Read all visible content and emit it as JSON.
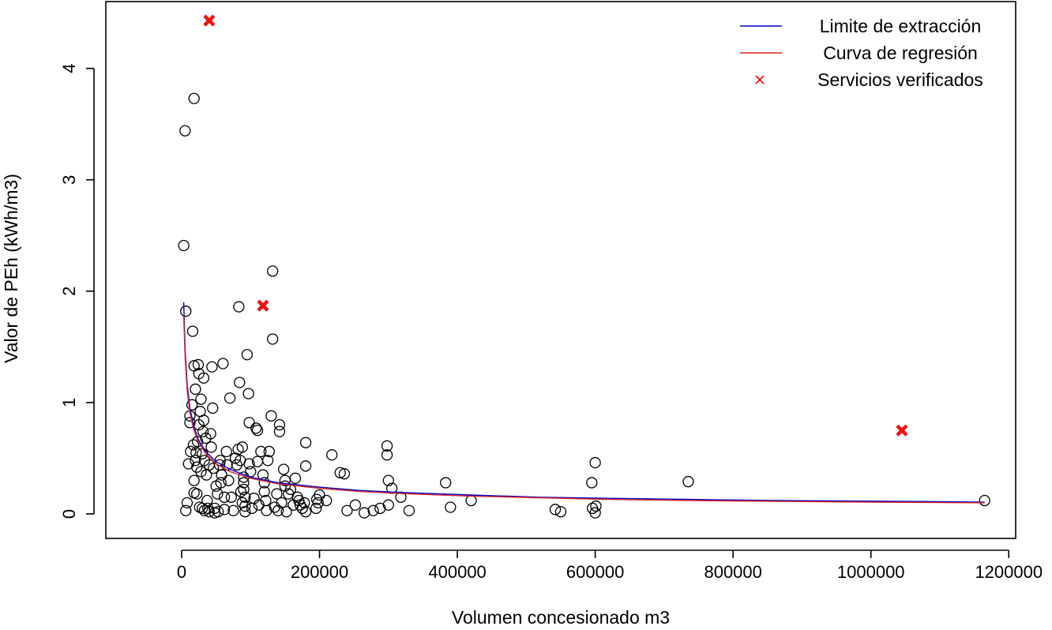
{
  "chart_data": {
    "type": "scatter",
    "xlabel": "Volumen concesionado m3",
    "ylabel": "Valor de PEh (kWh/m3)",
    "xlim": [
      -110000,
      1210000
    ],
    "ylim": [
      -0.22,
      4.6
    ],
    "x_ticks": [
      0,
      200000,
      400000,
      600000,
      800000,
      1000000,
      1200000
    ],
    "x_tick_labels": [
      "0",
      "200000",
      "400000",
      "600000",
      "800000",
      "1000000",
      "1200000"
    ],
    "y_ticks": [
      0,
      1,
      2,
      3,
      4
    ],
    "y_tick_labels": [
      "0",
      "1",
      "2",
      "3",
      "4"
    ],
    "grid": false,
    "legend_position": "top-right",
    "legend": [
      {
        "label": "Limite de extracción",
        "kind": "line",
        "color": "#0000cc"
      },
      {
        "label": "Curva de regresión",
        "kind": "line",
        "color": "#dd2222"
      },
      {
        "label": "Servicios verificados",
        "kind": "cross",
        "color": "#ee1111"
      }
    ],
    "series": [
      {
        "name": "Limite de extracción",
        "kind": "line",
        "color": "#0000cc",
        "x": [
          3000,
          5000,
          8000,
          12000,
          17000,
          24000,
          35000,
          50000,
          70000,
          100000,
          140000,
          200000,
          260000,
          330000,
          420000,
          520000,
          620000,
          740000,
          860000,
          980000,
          1100000,
          1165000
        ],
        "y": [
          1.9,
          1.47,
          1.16,
          0.95,
          0.8,
          0.67,
          0.56,
          0.47,
          0.4,
          0.33,
          0.28,
          0.24,
          0.21,
          0.19,
          0.17,
          0.15,
          0.14,
          0.13,
          0.12,
          0.115,
          0.11,
          0.105
        ]
      },
      {
        "name": "Curva de regresión",
        "kind": "line",
        "color": "#dd2222",
        "x": [
          3000,
          5000,
          8000,
          12000,
          17000,
          24000,
          35000,
          50000,
          70000,
          100000,
          140000,
          200000,
          260000,
          330000,
          420000,
          520000,
          620000,
          740000,
          860000,
          980000,
          1100000,
          1165000
        ],
        "y": [
          1.78,
          1.4,
          1.11,
          0.91,
          0.77,
          0.65,
          0.54,
          0.45,
          0.38,
          0.32,
          0.27,
          0.23,
          0.2,
          0.18,
          0.16,
          0.145,
          0.13,
          0.12,
          0.113,
          0.107,
          0.102,
          0.1
        ]
      },
      {
        "name": "Servicios verificados",
        "kind": "cross",
        "color": "#ee1111",
        "points": [
          [
            40000,
            4.43
          ],
          [
            118000,
            1.87
          ],
          [
            1045000,
            0.75
          ]
        ]
      },
      {
        "name": "",
        "kind": "circles",
        "color": "#000000",
        "points": [
          [
            3000,
            2.41
          ],
          [
            5000,
            3.44
          ],
          [
            6000,
            1.82
          ],
          [
            18000,
            3.73
          ],
          [
            8000,
            0.1
          ],
          [
            6000,
            0.03
          ],
          [
            10000,
            0.45
          ],
          [
            12000,
            0.82
          ],
          [
            12000,
            0.88
          ],
          [
            13000,
            0.56
          ],
          [
            15000,
            0.98
          ],
          [
            16000,
            1.64
          ],
          [
            17000,
            0.62
          ],
          [
            18000,
            0.19
          ],
          [
            18000,
            0.3
          ],
          [
            18000,
            1.33
          ],
          [
            20000,
            0.48
          ],
          [
            20000,
            1.12
          ],
          [
            21000,
            0.55
          ],
          [
            22000,
            0.18
          ],
          [
            22000,
            0.42
          ],
          [
            23000,
            0.65
          ],
          [
            24000,
            1.34
          ],
          [
            25000,
            1.26
          ],
          [
            25000,
            0.8
          ],
          [
            26000,
            0.06
          ],
          [
            27000,
            0.92
          ],
          [
            28000,
            1.03
          ],
          [
            28000,
            0.38
          ],
          [
            30000,
            0.05
          ],
          [
            30000,
            0.54
          ],
          [
            31000,
            0.74
          ],
          [
            32000,
            0.84
          ],
          [
            32000,
            1.22
          ],
          [
            33000,
            0.48
          ],
          [
            33000,
            0.03
          ],
          [
            35000,
            0.68
          ],
          [
            36000,
            0.35
          ],
          [
            37000,
            0.12
          ],
          [
            38000,
            0.05
          ],
          [
            40000,
            0.02
          ],
          [
            40000,
            0.44
          ],
          [
            42000,
            0.72
          ],
          [
            43000,
            0.6
          ],
          [
            44000,
            1.32
          ],
          [
            45000,
            0.95
          ],
          [
            46000,
            0.41
          ],
          [
            48000,
            0.05
          ],
          [
            48000,
            0.01
          ],
          [
            50000,
            0.25
          ],
          [
            52000,
            0.18
          ],
          [
            53000,
            0.02
          ],
          [
            55000,
            0.44
          ],
          [
            56000,
            0.48
          ],
          [
            57000,
            0.28
          ],
          [
            58000,
            0.35
          ],
          [
            60000,
            1.35
          ],
          [
            62000,
            0.15
          ],
          [
            62000,
            0.04
          ],
          [
            65000,
            0.56
          ],
          [
            66000,
            0.44
          ],
          [
            68000,
            0.3
          ],
          [
            70000,
            1.04
          ],
          [
            72000,
            0.15
          ],
          [
            75000,
            0.03
          ],
          [
            78000,
            0.5
          ],
          [
            80000,
            0.44
          ],
          [
            82000,
            0.58
          ],
          [
            83000,
            1.86
          ],
          [
            84000,
            1.18
          ],
          [
            85000,
            0.48
          ],
          [
            86000,
            0.2
          ],
          [
            88000,
            0.1
          ],
          [
            88000,
            0.6
          ],
          [
            90000,
            0.33
          ],
          [
            90000,
            0.28
          ],
          [
            90000,
            0.22
          ],
          [
            92000,
            0.15
          ],
          [
            92000,
            0.07
          ],
          [
            92000,
            0.02
          ],
          [
            95000,
            1.43
          ],
          [
            97000,
            1.08
          ],
          [
            98000,
            0.82
          ],
          [
            98000,
            0.45
          ],
          [
            100000,
            0.38
          ],
          [
            102000,
            0.05
          ],
          [
            105000,
            0.14
          ],
          [
            108000,
            0.77
          ],
          [
            110000,
            0.75
          ],
          [
            110000,
            0.47
          ],
          [
            112000,
            0.08
          ],
          [
            115000,
            0.56
          ],
          [
            118000,
            0.35
          ],
          [
            120000,
            0.28
          ],
          [
            120000,
            0.2
          ],
          [
            122000,
            0.12
          ],
          [
            123000,
            0.03
          ],
          [
            125000,
            0.48
          ],
          [
            127000,
            0.56
          ],
          [
            130000,
            0.88
          ],
          [
            132000,
            1.57
          ],
          [
            132000,
            2.18
          ],
          [
            135000,
            0.06
          ],
          [
            138000,
            0.18
          ],
          [
            140000,
            0.03
          ],
          [
            142000,
            0.8
          ],
          [
            142000,
            0.74
          ],
          [
            145000,
            0.1
          ],
          [
            148000,
            0.4
          ],
          [
            150000,
            0.3
          ],
          [
            150000,
            0.25
          ],
          [
            152000,
            0.02
          ],
          [
            155000,
            0.18
          ],
          [
            158000,
            0.22
          ],
          [
            162000,
            0.08
          ],
          [
            165000,
            0.32
          ],
          [
            168000,
            0.15
          ],
          [
            170000,
            0.12
          ],
          [
            172000,
            0.08
          ],
          [
            175000,
            0.05
          ],
          [
            178000,
            0.1
          ],
          [
            180000,
            0.64
          ],
          [
            180000,
            0.43
          ],
          [
            180000,
            0.02
          ],
          [
            195000,
            0.05
          ],
          [
            196000,
            0.13
          ],
          [
            198000,
            0.1
          ],
          [
            200000,
            0.17
          ],
          [
            210000,
            0.12
          ],
          [
            218000,
            0.53
          ],
          [
            230000,
            0.37
          ],
          [
            236000,
            0.36
          ],
          [
            240000,
            0.03
          ],
          [
            252000,
            0.08
          ],
          [
            265000,
            0.01
          ],
          [
            278000,
            0.03
          ],
          [
            288000,
            0.05
          ],
          [
            298000,
            0.61
          ],
          [
            298000,
            0.53
          ],
          [
            300000,
            0.3
          ],
          [
            300000,
            0.08
          ],
          [
            305000,
            0.23
          ],
          [
            318000,
            0.15
          ],
          [
            330000,
            0.03
          ],
          [
            383000,
            0.28
          ],
          [
            390000,
            0.06
          ],
          [
            420000,
            0.12
          ],
          [
            542000,
            0.04
          ],
          [
            550000,
            0.02
          ],
          [
            595000,
            0.28
          ],
          [
            596000,
            0.05
          ],
          [
            600000,
            0.46
          ],
          [
            600000,
            0.01
          ],
          [
            601000,
            0.07
          ],
          [
            735000,
            0.29
          ],
          [
            1165000,
            0.12
          ]
        ]
      }
    ]
  }
}
